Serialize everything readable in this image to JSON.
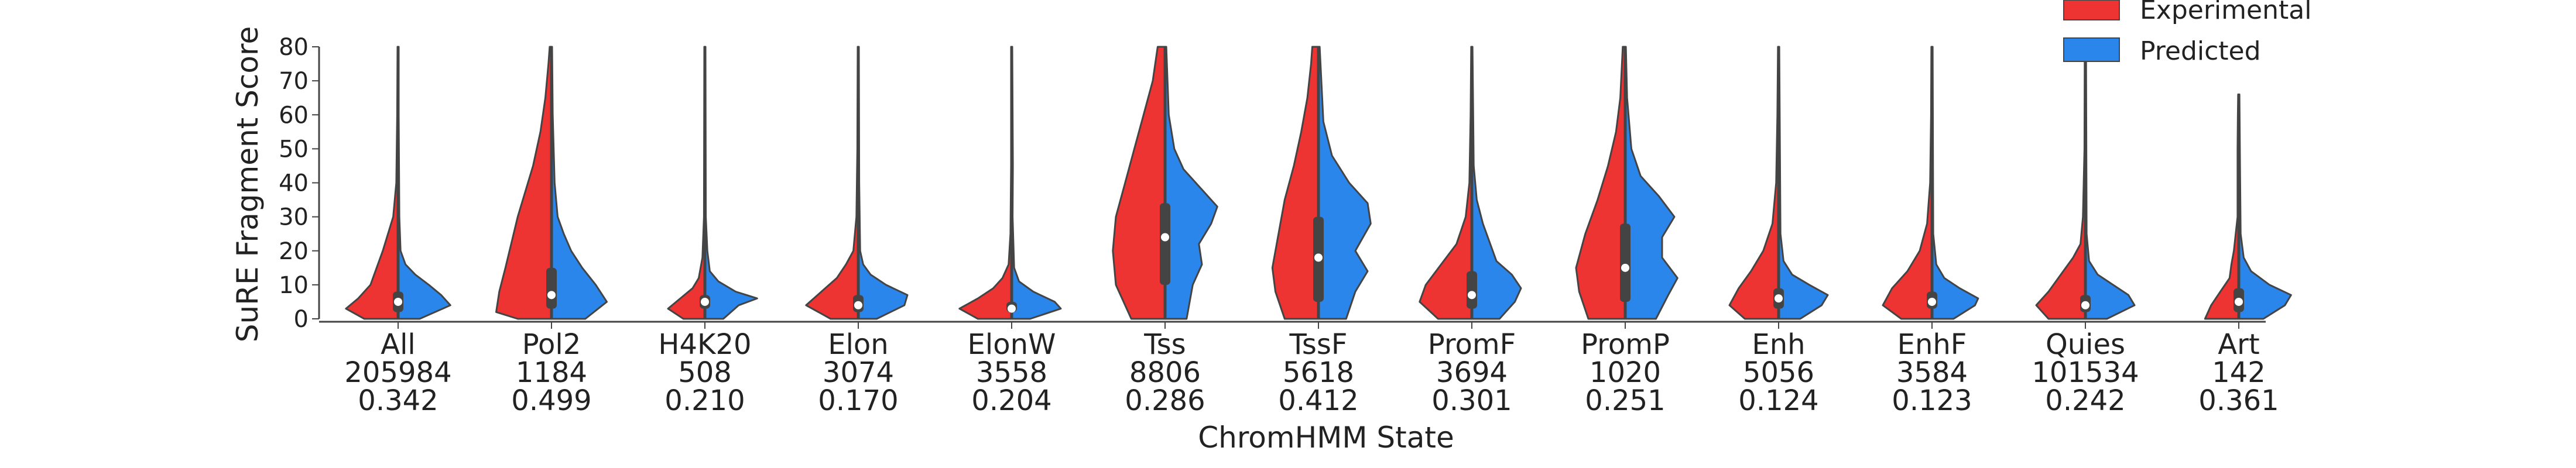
{
  "chart_data": {
    "type": "violin",
    "xlabel": "ChromHMM State",
    "ylabel": "SuRE Fragment Score",
    "ylim": [
      0,
      80
    ],
    "yticks": [
      0,
      10,
      20,
      30,
      40,
      50,
      60,
      70,
      80
    ],
    "grid": false,
    "legend_position": "top-right",
    "series": [
      {
        "name": "Experimental",
        "color": "#ee3333"
      },
      {
        "name": "Predicted",
        "color": "#2b86ec"
      }
    ],
    "categories": [
      {
        "name": "All",
        "count": "205984",
        "score": "0.342",
        "max": 80,
        "median": 5,
        "q1": 2,
        "q3": 8,
        "exp": [
          [
            0,
            0.55
          ],
          [
            3,
            0.85
          ],
          [
            6,
            0.65
          ],
          [
            10,
            0.45
          ],
          [
            20,
            0.25
          ],
          [
            30,
            0.08
          ],
          [
            40,
            0.03
          ],
          [
            60,
            0.015
          ],
          [
            80,
            0.01
          ]
        ],
        "pred": [
          [
            0,
            0.35
          ],
          [
            4,
            0.85
          ],
          [
            7,
            0.7
          ],
          [
            10,
            0.5
          ],
          [
            13,
            0.28
          ],
          [
            16,
            0.12
          ],
          [
            20,
            0.04
          ],
          [
            30,
            0.02
          ],
          [
            60,
            0.01
          ],
          [
            80,
            0.01
          ]
        ]
      },
      {
        "name": "Pol2",
        "count": "1184",
        "score": "0.499",
        "max": 80,
        "median": 7,
        "q1": 3,
        "q3": 15,
        "exp": [
          [
            0,
            0.55
          ],
          [
            2,
            0.9
          ],
          [
            8,
            0.85
          ],
          [
            15,
            0.75
          ],
          [
            30,
            0.55
          ],
          [
            45,
            0.3
          ],
          [
            55,
            0.18
          ],
          [
            65,
            0.1
          ],
          [
            75,
            0.05
          ],
          [
            80,
            0.03
          ]
        ],
        "pred": [
          [
            0,
            0.55
          ],
          [
            5,
            0.9
          ],
          [
            10,
            0.72
          ],
          [
            15,
            0.5
          ],
          [
            20,
            0.32
          ],
          [
            25,
            0.2
          ],
          [
            30,
            0.1
          ],
          [
            40,
            0.05
          ],
          [
            60,
            0.02
          ],
          [
            80,
            0.01
          ]
        ]
      },
      {
        "name": "H4K20",
        "count": "508",
        "score": "0.210",
        "max": 80,
        "median": 5,
        "q1": 3,
        "q3": 7,
        "exp": [
          [
            0,
            0.35
          ],
          [
            3,
            0.6
          ],
          [
            6,
            0.4
          ],
          [
            9,
            0.2
          ],
          [
            12,
            0.1
          ],
          [
            18,
            0.04
          ],
          [
            30,
            0.015
          ],
          [
            80,
            0.01
          ]
        ],
        "pred": [
          [
            0,
            0.3
          ],
          [
            4,
            0.55
          ],
          [
            6,
            0.85
          ],
          [
            8,
            0.5
          ],
          [
            11,
            0.22
          ],
          [
            14,
            0.08
          ],
          [
            20,
            0.04
          ],
          [
            30,
            0.015
          ],
          [
            80,
            0.01
          ]
        ]
      },
      {
        "name": "Elon",
        "count": "3074",
        "score": "0.170",
        "max": 80,
        "median": 4,
        "q1": 2,
        "q3": 7,
        "exp": [
          [
            0,
            0.45
          ],
          [
            4,
            0.85
          ],
          [
            8,
            0.6
          ],
          [
            12,
            0.35
          ],
          [
            16,
            0.2
          ],
          [
            20,
            0.08
          ],
          [
            30,
            0.03
          ],
          [
            50,
            0.015
          ],
          [
            80,
            0.01
          ]
        ],
        "pred": [
          [
            0,
            0.3
          ],
          [
            4,
            0.75
          ],
          [
            7,
            0.8
          ],
          [
            10,
            0.45
          ],
          [
            13,
            0.2
          ],
          [
            16,
            0.08
          ],
          [
            20,
            0.03
          ],
          [
            40,
            0.015
          ],
          [
            80,
            0.01
          ]
        ]
      },
      {
        "name": "ElonW",
        "count": "3558",
        "score": "0.204",
        "max": 80,
        "median": 3,
        "q1": 2,
        "q3": 5,
        "exp": [
          [
            0,
            0.55
          ],
          [
            3,
            0.85
          ],
          [
            6,
            0.55
          ],
          [
            9,
            0.3
          ],
          [
            12,
            0.15
          ],
          [
            16,
            0.05
          ],
          [
            25,
            0.02
          ],
          [
            45,
            0.01
          ],
          [
            80,
            0.01
          ]
        ],
        "pred": [
          [
            0,
            0.3
          ],
          [
            3,
            0.8
          ],
          [
            5,
            0.7
          ],
          [
            8,
            0.35
          ],
          [
            11,
            0.12
          ],
          [
            15,
            0.04
          ],
          [
            30,
            0.015
          ],
          [
            45,
            0.02
          ],
          [
            80,
            0.01
          ]
        ]
      },
      {
        "name": "Tss",
        "count": "8806",
        "score": "0.286",
        "max": 80,
        "median": 24,
        "q1": 10,
        "q3": 34,
        "exp": [
          [
            0,
            0.55
          ],
          [
            10,
            0.8
          ],
          [
            20,
            0.85
          ],
          [
            30,
            0.8
          ],
          [
            40,
            0.65
          ],
          [
            50,
            0.5
          ],
          [
            60,
            0.35
          ],
          [
            70,
            0.2
          ],
          [
            80,
            0.12
          ]
        ],
        "pred": [
          [
            0,
            0.35
          ],
          [
            10,
            0.45
          ],
          [
            16,
            0.6
          ],
          [
            22,
            0.55
          ],
          [
            28,
            0.75
          ],
          [
            33,
            0.85
          ],
          [
            38,
            0.6
          ],
          [
            44,
            0.3
          ],
          [
            50,
            0.15
          ],
          [
            60,
            0.06
          ],
          [
            80,
            0.02
          ]
        ]
      },
      {
        "name": "TssF",
        "count": "5618",
        "score": "0.412",
        "max": 80,
        "median": 18,
        "q1": 5,
        "q3": 30,
        "exp": [
          [
            0,
            0.55
          ],
          [
            8,
            0.7
          ],
          [
            15,
            0.75
          ],
          [
            25,
            0.65
          ],
          [
            35,
            0.55
          ],
          [
            45,
            0.4
          ],
          [
            55,
            0.28
          ],
          [
            65,
            0.18
          ],
          [
            75,
            0.12
          ],
          [
            80,
            0.1
          ]
        ],
        "pred": [
          [
            0,
            0.45
          ],
          [
            8,
            0.6
          ],
          [
            14,
            0.8
          ],
          [
            20,
            0.6
          ],
          [
            28,
            0.85
          ],
          [
            34,
            0.8
          ],
          [
            40,
            0.5
          ],
          [
            48,
            0.22
          ],
          [
            58,
            0.08
          ],
          [
            80,
            0.02
          ]
        ]
      },
      {
        "name": "PromF",
        "count": "3694",
        "score": "0.301",
        "max": 80,
        "median": 7,
        "q1": 3,
        "q3": 14,
        "exp": [
          [
            0,
            0.55
          ],
          [
            5,
            0.85
          ],
          [
            10,
            0.75
          ],
          [
            16,
            0.5
          ],
          [
            22,
            0.25
          ],
          [
            30,
            0.1
          ],
          [
            40,
            0.04
          ],
          [
            60,
            0.02
          ],
          [
            80,
            0.01
          ]
        ],
        "pred": [
          [
            0,
            0.45
          ],
          [
            5,
            0.7
          ],
          [
            9,
            0.8
          ],
          [
            13,
            0.65
          ],
          [
            17,
            0.4
          ],
          [
            22,
            0.3
          ],
          [
            28,
            0.18
          ],
          [
            35,
            0.08
          ],
          [
            45,
            0.03
          ],
          [
            80,
            0.01
          ]
        ]
      },
      {
        "name": "PromP",
        "count": "1020",
        "score": "0.251",
        "max": 80,
        "median": 15,
        "q1": 5,
        "q3": 28,
        "exp": [
          [
            0,
            0.6
          ],
          [
            8,
            0.75
          ],
          [
            15,
            0.8
          ],
          [
            25,
            0.65
          ],
          [
            35,
            0.45
          ],
          [
            45,
            0.28
          ],
          [
            55,
            0.15
          ],
          [
            65,
            0.08
          ],
          [
            80,
            0.04
          ]
        ],
        "pred": [
          [
            0,
            0.5
          ],
          [
            7,
            0.7
          ],
          [
            12,
            0.85
          ],
          [
            18,
            0.6
          ],
          [
            24,
            0.6
          ],
          [
            30,
            0.8
          ],
          [
            36,
            0.55
          ],
          [
            42,
            0.25
          ],
          [
            50,
            0.1
          ],
          [
            65,
            0.03
          ],
          [
            80,
            0.01
          ]
        ]
      },
      {
        "name": "Enh",
        "count": "5056",
        "score": "0.124",
        "max": 80,
        "median": 6,
        "q1": 3,
        "q3": 9,
        "exp": [
          [
            0,
            0.55
          ],
          [
            4,
            0.8
          ],
          [
            9,
            0.65
          ],
          [
            14,
            0.45
          ],
          [
            20,
            0.25
          ],
          [
            28,
            0.1
          ],
          [
            40,
            0.04
          ],
          [
            60,
            0.02
          ],
          [
            80,
            0.01
          ]
        ],
        "pred": [
          [
            0,
            0.35
          ],
          [
            4,
            0.7
          ],
          [
            7,
            0.8
          ],
          [
            10,
            0.5
          ],
          [
            13,
            0.22
          ],
          [
            17,
            0.08
          ],
          [
            25,
            0.03
          ],
          [
            80,
            0.01
          ]
        ]
      },
      {
        "name": "EnhF",
        "count": "3584",
        "score": "0.123",
        "max": 80,
        "median": 5,
        "q1": 3,
        "q3": 8,
        "exp": [
          [
            0,
            0.5
          ],
          [
            4,
            0.8
          ],
          [
            9,
            0.65
          ],
          [
            14,
            0.4
          ],
          [
            20,
            0.2
          ],
          [
            28,
            0.08
          ],
          [
            40,
            0.03
          ],
          [
            60,
            0.015
          ],
          [
            80,
            0.01
          ]
        ],
        "pred": [
          [
            0,
            0.35
          ],
          [
            4,
            0.7
          ],
          [
            6,
            0.75
          ],
          [
            9,
            0.45
          ],
          [
            12,
            0.2
          ],
          [
            16,
            0.07
          ],
          [
            25,
            0.02
          ],
          [
            80,
            0.01
          ]
        ]
      },
      {
        "name": "Quies",
        "count": "101534",
        "score": "0.242",
        "max": 80,
        "median": 4,
        "q1": 2,
        "q3": 7,
        "exp": [
          [
            0,
            0.6
          ],
          [
            4,
            0.8
          ],
          [
            8,
            0.6
          ],
          [
            13,
            0.4
          ],
          [
            18,
            0.2
          ],
          [
            22,
            0.08
          ],
          [
            30,
            0.04
          ],
          [
            50,
            0.015
          ],
          [
            80,
            0.01
          ]
        ],
        "pred": [
          [
            0,
            0.35
          ],
          [
            4,
            0.8
          ],
          [
            7,
            0.7
          ],
          [
            10,
            0.45
          ],
          [
            13,
            0.2
          ],
          [
            17,
            0.06
          ],
          [
            25,
            0.02
          ],
          [
            80,
            0.01
          ]
        ]
      },
      {
        "name": "Art",
        "count": "142",
        "score": "0.361",
        "max": 66,
        "median": 5,
        "q1": 2,
        "q3": 9,
        "exp": [
          [
            0,
            0.55
          ],
          [
            4,
            0.45
          ],
          [
            8,
            0.3
          ],
          [
            12,
            0.15
          ],
          [
            16,
            0.12
          ],
          [
            20,
            0.08
          ],
          [
            30,
            0.02
          ],
          [
            50,
            0.02
          ],
          [
            60,
            0.015
          ],
          [
            66,
            0.01
          ]
        ],
        "pred": [
          [
            0,
            0.4
          ],
          [
            4,
            0.75
          ],
          [
            7,
            0.85
          ],
          [
            10,
            0.5
          ],
          [
            14,
            0.2
          ],
          [
            18,
            0.08
          ],
          [
            25,
            0.03
          ],
          [
            45,
            0.02
          ],
          [
            66,
            0.01
          ]
        ]
      }
    ]
  }
}
